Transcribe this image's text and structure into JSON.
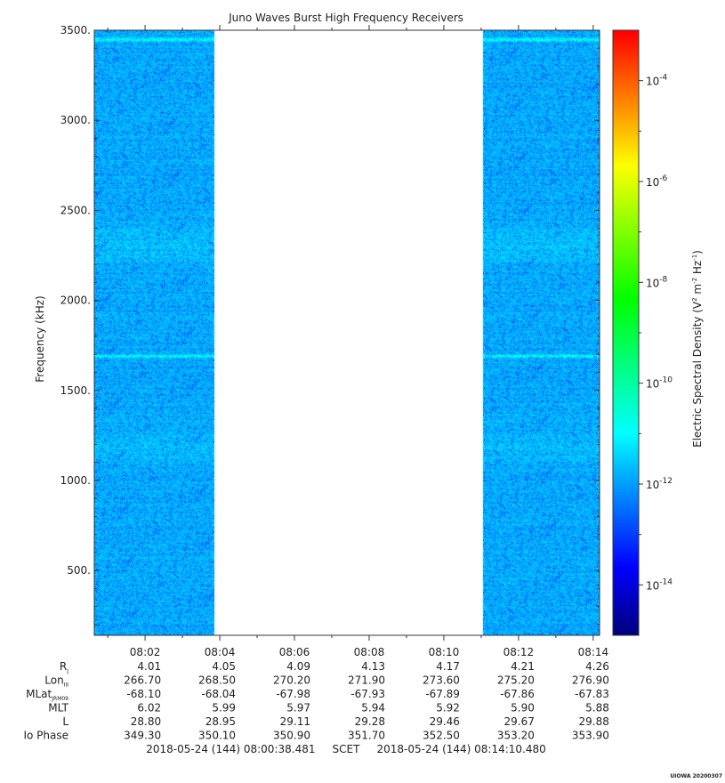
{
  "chart_data": {
    "type": "heatmap",
    "title": "Juno Waves Burst High Frequency Receivers",
    "ylabel": "Frequency (kHz)",
    "ylim": [
      140,
      3500
    ],
    "y_ticks": [
      500,
      1000,
      1500,
      2000,
      2500,
      3000,
      3500
    ],
    "y_tick_labels": [
      "500.",
      "1000.",
      "1500.",
      "2000.",
      "2500.",
      "3000.",
      "3500."
    ],
    "x_tick_labels": [
      "08:02",
      "08:04",
      "08:06",
      "08:08",
      "08:10",
      "08:12",
      "08:14"
    ],
    "x_ticks_min": [
      2,
      4,
      6,
      8,
      10,
      12,
      14
    ],
    "xlim_min": [
      0.64,
      14.17
    ],
    "data_gap_min": [
      3.84,
      11.03
    ],
    "bright_bands_khz": [
      3450,
      1690
    ],
    "colorbar": {
      "label": "Electric Spectral Density (V2 m-2 Hz-1)",
      "label_main": "Electric Spectral Density (V",
      "label_sup1": "2",
      "label_mid": " m",
      "label_sup2": "-2",
      "label_mid2": " Hz",
      "label_sup3": "-1",
      "label_end": ")",
      "scale": "log",
      "range_exp": [
        -15,
        -3
      ],
      "tick_exps": [
        -14,
        -12,
        -10,
        -8,
        -6,
        -4
      ],
      "tick_base": "10",
      "tick_sups": [
        "-14",
        "-12",
        "-10",
        "-8",
        "-6",
        "-4"
      ],
      "colors": [
        "#000080",
        "#0000ff",
        "#0080ff",
        "#00ffff",
        "#00ff80",
        "#00ff00",
        "#80ff00",
        "#ffff00",
        "#ff8000",
        "#ff0000"
      ]
    },
    "dominant_level_exp": -11.7
  },
  "ephemeris": {
    "rows": [
      {
        "label": "R",
        "sub": "J",
        "values": [
          "4.01",
          "4.05",
          "4.09",
          "4.13",
          "4.17",
          "4.21",
          "4.26"
        ]
      },
      {
        "label": "Lon",
        "sub": "III",
        "values": [
          "266.70",
          "268.50",
          "270.20",
          "271.90",
          "273.60",
          "275.20",
          "276.90"
        ]
      },
      {
        "label": "MLat",
        "sub": "JRM09",
        "values": [
          "-68.10",
          "-68.04",
          "-67.98",
          "-67.93",
          "-67.89",
          "-67.86",
          "-67.83"
        ]
      },
      {
        "label": "MLT",
        "sub": "",
        "values": [
          "6.02",
          "5.99",
          "5.97",
          "5.94",
          "5.92",
          "5.90",
          "5.88"
        ]
      },
      {
        "label": "L",
        "sub": "",
        "values": [
          "28.80",
          "28.95",
          "29.11",
          "29.28",
          "29.46",
          "29.67",
          "29.88"
        ]
      },
      {
        "label": "Io Phase",
        "sub": "",
        "values": [
          "349.30",
          "350.10",
          "350.90",
          "351.70",
          "352.50",
          "353.20",
          "353.90"
        ]
      }
    ]
  },
  "footer": {
    "range_text": "2018-05-24 (144) 08:00:38.481     SCET     2018-05-24 (144) 08:14:10.480",
    "credit": "UIOWA 20200307"
  }
}
